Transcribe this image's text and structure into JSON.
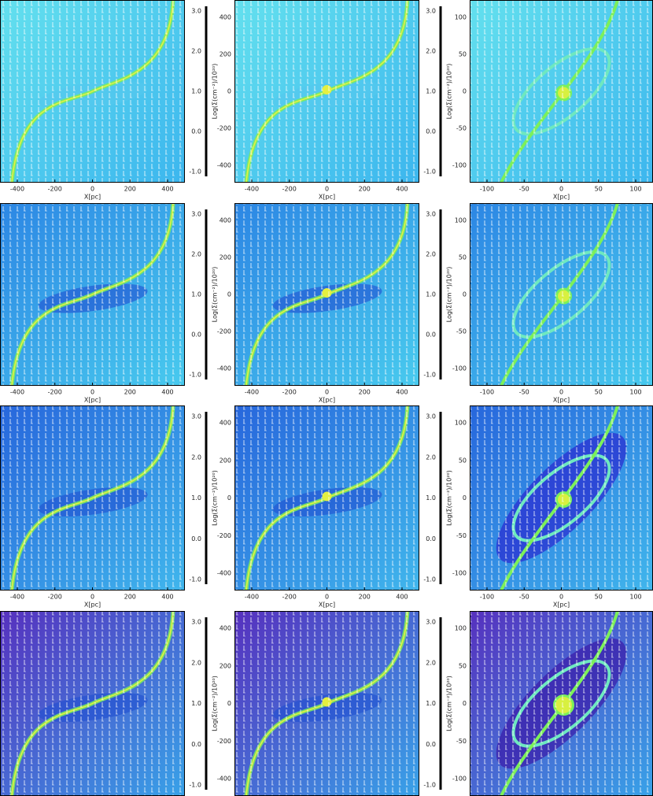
{
  "figure": {
    "panels": [
      {
        "xticks": [
          "-400",
          "-200",
          "0",
          "200",
          "400"
        ],
        "xlabel": "X[pc]",
        "colorbar": {
          "label": "Log(Σ(cm⁻²)/10²⁰)",
          "ticks": [
            "3.0",
            "2.0",
            "1.0",
            "0.0",
            "-1.0"
          ]
        }
      },
      {
        "yticks": [
          "400",
          "200",
          "0",
          "-200",
          "-400"
        ],
        "xticks": [
          "-400",
          "-200",
          "0",
          "200",
          "400"
        ],
        "xlabel": "X[pc]",
        "colorbar": {
          "label": "Log(Σ(cm⁻²)/10²⁰)",
          "ticks": [
            "3.0",
            "2.0",
            "1.0",
            "0.0",
            "-1.0"
          ]
        }
      },
      {
        "yticks": [
          "100",
          "50",
          "0",
          "-50",
          "-100"
        ],
        "xticks": [
          "-100",
          "-50",
          "0",
          "50",
          "100"
        ],
        "xlabel": "X[pc]"
      },
      {
        "xticks": [
          "-400",
          "-200",
          "0",
          "200",
          "400"
        ],
        "xlabel": "X[pc]",
        "colorbar": {
          "label": "Log(Σ(cm⁻²)/10²⁰)",
          "ticks": [
            "3.0",
            "2.0",
            "1.0",
            "0.0",
            "-1.0"
          ]
        }
      },
      {
        "yticks": [
          "400",
          "200",
          "0",
          "-200",
          "-400"
        ],
        "xticks": [
          "-400",
          "-200",
          "0",
          "200",
          "400"
        ],
        "xlabel": "X[pc]",
        "colorbar": {
          "label": "Log(Σ(cm⁻²)/10²⁰)",
          "ticks": [
            "3.0",
            "2.0",
            "1.0",
            "0.0",
            "-1.0"
          ]
        }
      },
      {
        "yticks": [
          "100",
          "50",
          "0",
          "-50",
          "-100"
        ],
        "xticks": [
          "-100",
          "-50",
          "0",
          "50",
          "100"
        ],
        "xlabel": "X[pc]"
      },
      {
        "xticks": [
          "-400",
          "-200",
          "0",
          "200",
          "400"
        ],
        "xlabel": "X[pc]",
        "colorbar": {
          "label": "Log(Σ(cm⁻²)/10²⁰)",
          "ticks": [
            "3.0",
            "2.0",
            "1.0",
            "0.0",
            "-1.0"
          ]
        }
      },
      {
        "yticks": [
          "400",
          "200",
          "0",
          "-200",
          "-400"
        ],
        "xticks": [
          "-400",
          "-200",
          "0",
          "200",
          "400"
        ],
        "xlabel": "X[pc]",
        "colorbar": {
          "label": "Log(Σ(cm⁻²)/10²⁰)",
          "ticks": [
            "3.0",
            "2.0",
            "1.0",
            "0.0",
            "-1.0"
          ]
        }
      },
      {
        "yticks": [
          "100",
          "50",
          "0",
          "-50",
          "-100"
        ],
        "xticks": [
          "-100",
          "-50",
          "0",
          "50",
          "100"
        ],
        "xlabel": "X[pc]"
      },
      {
        "colorbar": {
          "label": "Log(Σ(cm⁻²)/10²⁰)",
          "ticks": [
            "3.0",
            "2.0",
            "1.0",
            "0.0",
            "-1.0"
          ]
        }
      },
      {
        "yticks": [
          "400",
          "200",
          "0",
          "-200",
          "-400"
        ],
        "colorbar": {
          "label": "Log(Σ(cm⁻²)/10²⁰)",
          "ticks": [
            "3.0",
            "2.0",
            "1.0",
            "0.0",
            "-1.0"
          ]
        }
      },
      {
        "yticks": [
          "100",
          "50",
          "0",
          "-50",
          "-100"
        ]
      }
    ]
  }
}
